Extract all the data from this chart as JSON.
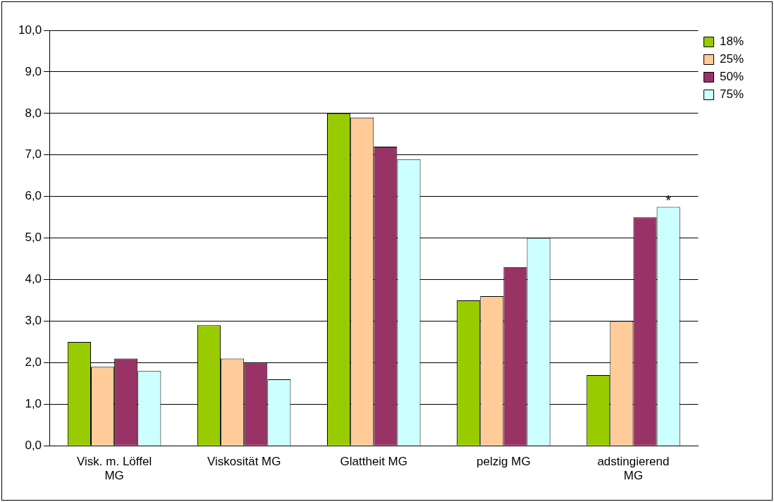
{
  "chart_data": {
    "type": "bar",
    "categories": [
      "Visk. m. Löffel MG",
      "Viskosität MG",
      "Glattheit MG",
      "pelzig MG",
      "adstingierend MG"
    ],
    "series": [
      {
        "name": "18%",
        "color": "#99cc00",
        "values": [
          2.5,
          2.9,
          8.0,
          3.5,
          1.7
        ]
      },
      {
        "name": "25%",
        "color": "#ffcc99",
        "values": [
          1.9,
          2.1,
          7.9,
          3.6,
          3.0
        ]
      },
      {
        "name": "50%",
        "color": "#993366",
        "values": [
          2.1,
          2.0,
          7.2,
          4.3,
          5.5
        ]
      },
      {
        "name": "75%",
        "color": "#ccffff",
        "values": [
          1.8,
          1.6,
          6.9,
          5.0,
          5.75
        ]
      }
    ],
    "ylim": [
      0,
      10
    ],
    "yticks": [
      {
        "value": 0,
        "label": "0,0"
      },
      {
        "value": 1,
        "label": "1,0"
      },
      {
        "value": 2,
        "label": "2,0"
      },
      {
        "value": 3,
        "label": "3,0"
      },
      {
        "value": 4,
        "label": "4,0"
      },
      {
        "value": 5,
        "label": "5,0"
      },
      {
        "value": 6,
        "label": "6,0"
      },
      {
        "value": 7,
        "label": "7,0"
      },
      {
        "value": 8,
        "label": "8,0"
      },
      {
        "value": 9,
        "label": "9,0"
      },
      {
        "value": 10,
        "label": "10,0"
      }
    ],
    "grid": "y",
    "legend": "top right",
    "annotations": [
      "*"
    ]
  }
}
